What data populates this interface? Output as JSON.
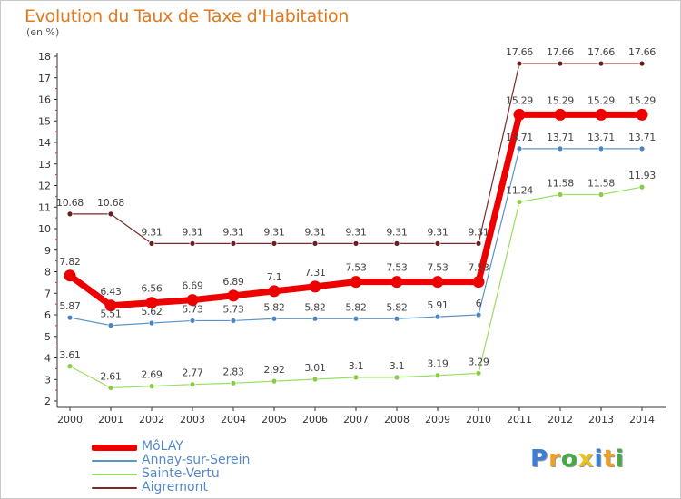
{
  "chart_data": {
    "type": "line",
    "title": "Evolution du Taux de Taxe d'Habitation",
    "unit_label": "(en %)",
    "x": [
      "2000",
      "2001",
      "2002",
      "2003",
      "2004",
      "2005",
      "2006",
      "2007",
      "2008",
      "2009",
      "2010",
      "2011",
      "2012",
      "2013",
      "2014"
    ],
    "ylim": [
      2,
      18
    ],
    "yticks": [
      2,
      3,
      4,
      5,
      6,
      7,
      8,
      9,
      10,
      11,
      12,
      13,
      14,
      15,
      16,
      17,
      18
    ],
    "grid": false,
    "legend_position": "bottom-left",
    "series": [
      {
        "name": "MôLAY",
        "color": "#ee0000",
        "point_color": "#ee0000",
        "width": 7,
        "point_r": 6.5,
        "values": [
          7.82,
          6.43,
          6.56,
          6.69,
          6.89,
          7.1,
          7.31,
          7.53,
          7.53,
          7.53,
          7.53,
          15.29,
          15.29,
          15.29,
          15.29
        ],
        "labels": [
          "7.82",
          "6.43",
          "6.56",
          "6.69",
          "6.89",
          "7.1",
          "7.31",
          "7.53",
          "7.53",
          "7.53",
          "7.53",
          "15.29",
          "15.29",
          "15.29",
          "15.29"
        ]
      },
      {
        "name": "Annay-sur-Serein",
        "color": "#5c93c9",
        "point_color": "#4a85c2",
        "width": 1.2,
        "point_r": 3,
        "values": [
          5.87,
          5.51,
          5.62,
          5.73,
          5.73,
          5.82,
          5.82,
          5.82,
          5.82,
          5.91,
          6,
          13.71,
          13.71,
          13.71,
          13.71
        ],
        "labels": [
          "5.87",
          "5.51",
          "5.62",
          "5.73",
          "5.73",
          "5.82",
          "5.82",
          "5.82",
          "5.82",
          "5.91",
          "6",
          "13.71",
          "13.71",
          "13.71",
          "13.71"
        ]
      },
      {
        "name": "Sainte-Vertu",
        "color": "#99dd66",
        "point_color": "#88cc44",
        "width": 1.2,
        "point_r": 3,
        "values": [
          3.61,
          2.61,
          2.69,
          2.77,
          2.83,
          2.92,
          3.01,
          3.1,
          3.1,
          3.19,
          3.29,
          11.24,
          11.58,
          11.58,
          11.93
        ],
        "labels": [
          "3.61",
          "2.61",
          "2.69",
          "2.77",
          "2.83",
          "2.92",
          "3.01",
          "3.1",
          "3.1",
          "3.19",
          "3.29",
          "11.24",
          "11.58",
          "11.58",
          "11.93"
        ]
      },
      {
        "name": "Aigremont",
        "color": "#7a2a2a",
        "point_color": "#6b1e1e",
        "width": 1.2,
        "point_r": 3,
        "values": [
          10.68,
          10.68,
          9.31,
          9.31,
          9.31,
          9.31,
          9.31,
          9.31,
          9.31,
          9.31,
          9.31,
          17.66,
          17.66,
          17.66,
          17.66
        ],
        "labels": [
          "10.68",
          "10.68",
          "9.31",
          "9.31",
          "9.31",
          "9.31",
          "9.31",
          "9.31",
          "9.31",
          "9.31",
          "9.31",
          "17.66",
          "17.66",
          "17.66",
          "17.66"
        ]
      }
    ]
  },
  "legend": {
    "items": [
      {
        "label": "MôLAY",
        "color": "#ee0000",
        "thickness": 7
      },
      {
        "label": "Annay-sur-Serein",
        "color": "#5c93c9",
        "thickness": 2
      },
      {
        "label": "Sainte-Vertu",
        "color": "#99dd66",
        "thickness": 2
      },
      {
        "label": "Aigremont",
        "color": "#7a2a2a",
        "thickness": 2
      }
    ]
  },
  "logo": {
    "letters": [
      "P",
      "r",
      "o",
      "x",
      "i",
      "t",
      "i"
    ],
    "colors": [
      "#3a7fd5",
      "#f0a020",
      "#44aa44",
      "#e8c020",
      "#3a7fd5",
      "#f0a020",
      "#44aa44"
    ]
  }
}
